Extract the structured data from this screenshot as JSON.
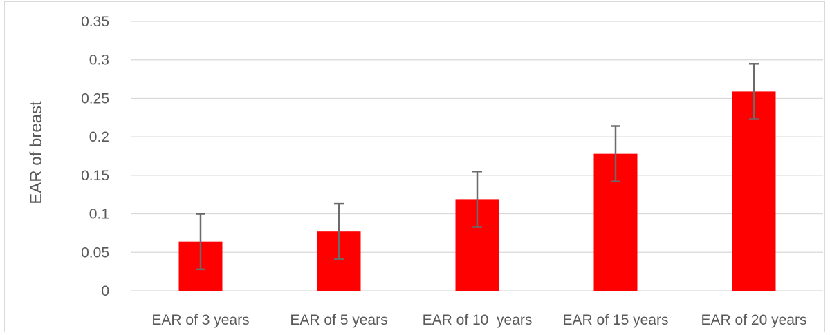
{
  "chart_data": {
    "type": "bar",
    "title": "",
    "xlabel": "",
    "ylabel": "EAR of breast",
    "categories": [
      "EAR of 3 years",
      "EAR of 5 years",
      "EAR of 10  years",
      "EAR of 15 years",
      "EAR of 20 years"
    ],
    "values": [
      0.064,
      0.077,
      0.119,
      0.178,
      0.259
    ],
    "error_upper": [
      0.1,
      0.113,
      0.155,
      0.214,
      0.295
    ],
    "error_lower": [
      0.028,
      0.041,
      0.083,
      0.142,
      0.223
    ],
    "ylim": [
      0,
      0.35
    ],
    "yticks": [
      "0",
      "0.05",
      "0.1",
      "0.15",
      "0.2",
      "0.25",
      "0.3",
      "0.35"
    ],
    "grid": true,
    "legend": "none",
    "colors": {
      "bar": "#ff0000",
      "error_bar": "#6b6b6b",
      "grid": "#d9d9d9",
      "text": "#595959"
    }
  }
}
